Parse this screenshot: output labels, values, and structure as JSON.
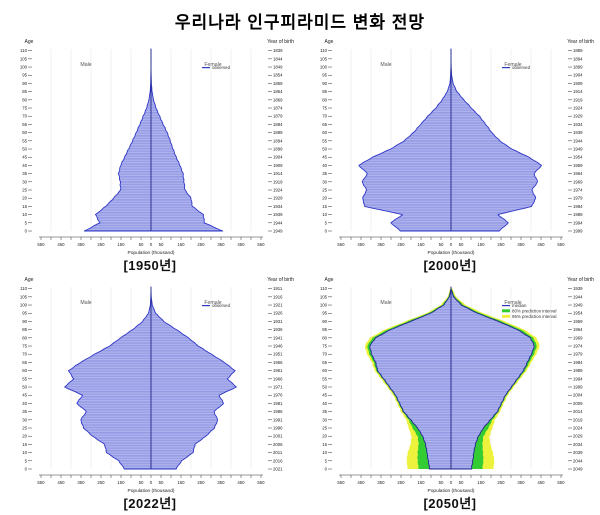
{
  "title": "우리나라 인구피라미드 변화 전망",
  "colors": {
    "area_fill": "#b2b6ef",
    "area_hatch": "#8289de",
    "outline": "#2e36c5",
    "median_outline": "#23298f",
    "pi80_green": "#33cc33",
    "pi95_yellow": "#edf23c",
    "grid": "#e2e2e2",
    "axis_text": "#222222",
    "sex_label": "#555555"
  },
  "chart_data": [
    {
      "type": "population-pyramid",
      "caption": "[1950년]",
      "age_axis_label": "Age",
      "birth_axis_label": "Year of birth",
      "x_axis_label": "Population (thousand)",
      "male_label": "Male",
      "female_label": "Female",
      "x_tick_labels": [
        "550",
        "450",
        "350",
        "250",
        "150",
        "50",
        "0",
        "50",
        "150",
        "250",
        "350",
        "450",
        "550"
      ],
      "age_ticks": [
        0,
        5,
        10,
        15,
        20,
        25,
        30,
        35,
        40,
        45,
        50,
        55,
        60,
        65,
        70,
        75,
        80,
        85,
        90,
        95,
        100,
        105,
        110
      ],
      "birth_years_top_to_bottom": [
        "1839",
        "1844",
        "1849",
        "1854",
        "1859",
        "1864",
        "1869",
        "1874",
        "1879",
        "1884",
        "1889",
        "1894",
        "1899",
        "1904",
        "1909",
        "1914",
        "1919",
        "1924",
        "1929",
        "1934",
        "1939",
        "1944",
        "1949"
      ],
      "ages": [
        0,
        5,
        10,
        15,
        20,
        25,
        30,
        35,
        40,
        45,
        50,
        55,
        60,
        65,
        70,
        75,
        80,
        85,
        90,
        95,
        100,
        105,
        110
      ],
      "series": [
        {
          "name": "Male",
          "values": [
            330,
            255,
            275,
            225,
            185,
            150,
            152,
            160,
            150,
            130,
            110,
            90,
            72,
            54,
            37,
            21,
            10,
            4,
            1.5,
            0.8,
            0,
            0,
            0
          ]
        },
        {
          "name": "Female",
          "values": [
            355,
            265,
            260,
            205,
            198,
            168,
            163,
            158,
            143,
            124,
            108,
            94,
            79,
            59,
            41,
            24,
            12,
            5,
            2,
            0.8,
            0,
            0,
            0
          ]
        }
      ],
      "legend": [
        {
          "label": "observed",
          "color": "#2e36c5",
          "swatch": "line"
        }
      ]
    },
    {
      "type": "population-pyramid",
      "caption": "[2000년]",
      "age_axis_label": "Age",
      "birth_axis_label": "Year of birth",
      "x_axis_label": "Population (thousand)",
      "male_label": "Male",
      "female_label": "Female",
      "x_tick_labels": [
        "550",
        "450",
        "350",
        "250",
        "150",
        "50",
        "0",
        "50",
        "150",
        "250",
        "350",
        "450",
        "550"
      ],
      "age_ticks": [
        0,
        5,
        10,
        15,
        20,
        25,
        30,
        35,
        40,
        45,
        50,
        55,
        60,
        65,
        70,
        75,
        80,
        85,
        90,
        95,
        100,
        105,
        110
      ],
      "birth_years_top_to_bottom": [
        "1889",
        "1894",
        "1899",
        "1904",
        "1909",
        "1914",
        "1919",
        "1924",
        "1929",
        "1934",
        "1939",
        "1944",
        "1949",
        "1954",
        "1959",
        "1964",
        "1969",
        "1974",
        "1979",
        "1984",
        "1989",
        "1994",
        "1999"
      ],
      "ages": [
        0,
        5,
        10,
        15,
        20,
        25,
        30,
        35,
        40,
        45,
        50,
        55,
        60,
        65,
        70,
        75,
        80,
        85,
        90,
        95,
        100,
        105,
        110
      ],
      "series": [
        {
          "name": "Male",
          "values": [
            250,
            300,
            240,
            430,
            440,
            420,
            443,
            415,
            460,
            390,
            300,
            232,
            186,
            150,
            114,
            74,
            42,
            18,
            5,
            2,
            0.5,
            0,
            0
          ]
        },
        {
          "name": "Female",
          "values": [
            238,
            286,
            232,
            402,
            422,
            402,
            432,
            412,
            452,
            388,
            302,
            242,
            202,
            172,
            140,
            100,
            62,
            28,
            10,
            3,
            1,
            0,
            0
          ]
        }
      ],
      "legend": [
        {
          "label": "observed",
          "color": "#2e36c5",
          "swatch": "line"
        }
      ]
    },
    {
      "type": "population-pyramid",
      "caption": "[2022년]",
      "age_axis_label": "Age",
      "birth_axis_label": "Year of birth",
      "x_axis_label": "Population (thousand)",
      "male_label": "Male",
      "female_label": "Female",
      "x_tick_labels": [
        "550",
        "450",
        "350",
        "250",
        "150",
        "50",
        "0",
        "50",
        "150",
        "250",
        "350",
        "450",
        "550"
      ],
      "age_ticks": [
        0,
        5,
        10,
        15,
        20,
        25,
        30,
        35,
        40,
        45,
        50,
        55,
        60,
        65,
        70,
        75,
        80,
        85,
        90,
        95,
        100,
        105,
        110
      ],
      "birth_years_top_to_bottom": [
        "1911",
        "1916",
        "1921",
        "1926",
        "1931",
        "1936",
        "1941",
        "1946",
        "1951",
        "1956",
        "1961",
        "1966",
        "1971",
        "1976",
        "1981",
        "1986",
        "1991",
        "1996",
        "2001",
        "2006",
        "2011",
        "2016",
        "2021"
      ],
      "ages": [
        0,
        5,
        10,
        15,
        20,
        25,
        30,
        35,
        40,
        45,
        50,
        55,
        60,
        65,
        70,
        75,
        80,
        85,
        90,
        95,
        100,
        105,
        110
      ],
      "series": [
        {
          "name": "Male",
          "values": [
            130,
            160,
            220,
            230,
            290,
            335,
            350,
            320,
            370,
            340,
            430,
            385,
            410,
            350,
            280,
            205,
            150,
            90,
            40,
            12,
            3,
            1,
            0
          ]
        },
        {
          "name": "Female",
          "values": [
            122,
            152,
            208,
            218,
            272,
            315,
            332,
            312,
            362,
            338,
            425,
            380,
            418,
            365,
            300,
            235,
            185,
            125,
            62,
            22,
            6,
            1,
            0
          ]
        }
      ],
      "legend": [
        {
          "label": "observed",
          "color": "#2e36c5",
          "swatch": "line"
        }
      ]
    },
    {
      "type": "population-pyramid-forecast",
      "caption": "[2050년]",
      "age_axis_label": "Age",
      "birth_axis_label": "Year of birth",
      "x_axis_label": "Population (thousand)",
      "male_label": "Male",
      "female_label": "Female",
      "x_tick_labels": [
        "550",
        "450",
        "350",
        "250",
        "150",
        "50",
        "0",
        "50",
        "150",
        "250",
        "350",
        "450",
        "550"
      ],
      "age_ticks": [
        0,
        5,
        10,
        15,
        20,
        25,
        30,
        35,
        40,
        45,
        50,
        55,
        60,
        65,
        70,
        75,
        80,
        85,
        90,
        95,
        100,
        105,
        110
      ],
      "birth_years_top_to_bottom": [
        "1939",
        "1944",
        "1949",
        "1954",
        "1959",
        "1964",
        "1969",
        "1974",
        "1979",
        "1984",
        "1989",
        "1994",
        "1999",
        "2004",
        "2009",
        "2014",
        "2019",
        "2024",
        "2029",
        "2034",
        "2039",
        "2044",
        "2049"
      ],
      "ages": [
        0,
        5,
        10,
        15,
        20,
        25,
        30,
        35,
        40,
        45,
        50,
        55,
        60,
        65,
        70,
        75,
        80,
        85,
        90,
        95,
        100,
        105,
        110
      ],
      "series": [
        {
          "name": "Male",
          "values": [
            105,
            112,
            118,
            125,
            140,
            165,
            200,
            235,
            255,
            275,
            305,
            335,
            365,
            375,
            395,
            405,
            375,
            300,
            200,
            100,
            35,
            8,
            0
          ]
        },
        {
          "name": "Female",
          "values": [
            100,
            107,
            112,
            120,
            135,
            160,
            195,
            230,
            250,
            270,
            300,
            330,
            360,
            380,
            400,
            415,
            395,
            330,
            235,
            130,
            50,
            12,
            0
          ]
        }
      ],
      "prediction_intervals": {
        "male": {
          "pi80": [
            160,
            165,
            165,
            160,
            165,
            190,
            210,
            240,
            260,
            280,
            310,
            340,
            372,
            384,
            406,
            418,
            390,
            316,
            215,
            112,
            42,
            12,
            2
          ],
          "pi95": [
            215,
            220,
            215,
            200,
            195,
            210,
            222,
            248,
            267,
            287,
            317,
            348,
            380,
            394,
            418,
            430,
            404,
            330,
            228,
            122,
            50,
            16,
            4
          ]
        },
        "female": {
          "pi80": [
            155,
            160,
            158,
            155,
            160,
            185,
            205,
            235,
            255,
            275,
            305,
            336,
            368,
            390,
            412,
            428,
            410,
            348,
            252,
            145,
            60,
            18,
            3
          ],
          "pi95": [
            210,
            215,
            208,
            195,
            190,
            205,
            218,
            243,
            262,
            282,
            312,
            344,
            376,
            400,
            424,
            442,
            426,
            365,
            268,
            160,
            72,
            24,
            6
          ]
        }
      },
      "legend": [
        {
          "label": "median",
          "color": "#2e36c5",
          "swatch": "line"
        },
        {
          "label": "80% prediction interval",
          "color": "#33cc33",
          "swatch": "band"
        },
        {
          "label": "95% prediction interval",
          "color": "#edf23c",
          "swatch": "band"
        }
      ]
    }
  ]
}
